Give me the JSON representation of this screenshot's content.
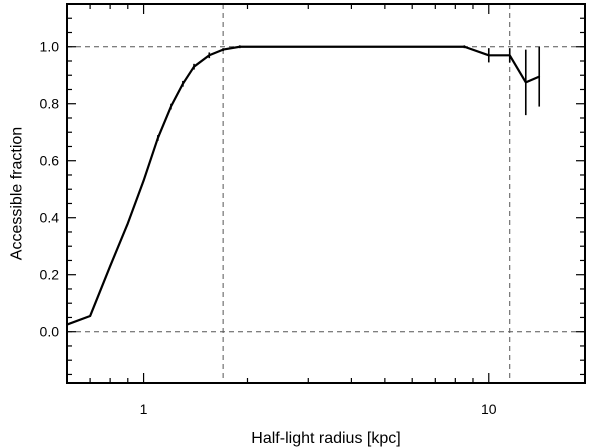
{
  "chart_data": {
    "type": "line",
    "title": "",
    "xlabel": "Half-light radius [kpc]",
    "ylabel": "Accessible fraction",
    "xscale": "log",
    "xlim": [
      0.6,
      19
    ],
    "ylim": [
      -0.18,
      1.15
    ],
    "xticks": [
      {
        "value": 1,
        "label": "1"
      },
      {
        "value": 10,
        "label": "10"
      }
    ],
    "yticks": [
      {
        "value": 0.0,
        "label": "0.0"
      },
      {
        "value": 0.2,
        "label": "0.2"
      },
      {
        "value": 0.4,
        "label": "0.4"
      },
      {
        "value": 0.6,
        "label": "0.6"
      },
      {
        "value": 0.8,
        "label": "0.8"
      },
      {
        "value": 1.0,
        "label": "1.0"
      }
    ],
    "reference_lines": {
      "horizontal": [
        0.0,
        1.0
      ],
      "vertical": [
        1.7,
        11.5
      ],
      "style": "dashed"
    },
    "grid": false,
    "series": [
      {
        "x": [
          0.6,
          0.7,
          0.8,
          0.9,
          1.0,
          1.1,
          1.2,
          1.3,
          1.4,
          1.55,
          1.7,
          1.9,
          2.1,
          2.5,
          3.0,
          4.0,
          6.0,
          8.5,
          10.0,
          11.5,
          12.8,
          14.0
        ],
        "y": [
          0.025,
          0.055,
          0.23,
          0.38,
          0.53,
          0.68,
          0.79,
          0.87,
          0.93,
          0.97,
          0.99,
          1.0,
          1.0,
          1.0,
          1.0,
          1.0,
          1.0,
          1.0,
          0.97,
          0.97,
          0.875,
          0.895
        ],
        "yerr": [
          0.0,
          0.0,
          0.0,
          0.0,
          0.0,
          0.01,
          0.01,
          0.01,
          0.01,
          0.01,
          0.005,
          0.005,
          0.0,
          0.0,
          0.0,
          0.0,
          0.0,
          0.005,
          0.025,
          0.025,
          0.115,
          0.105
        ]
      }
    ]
  }
}
